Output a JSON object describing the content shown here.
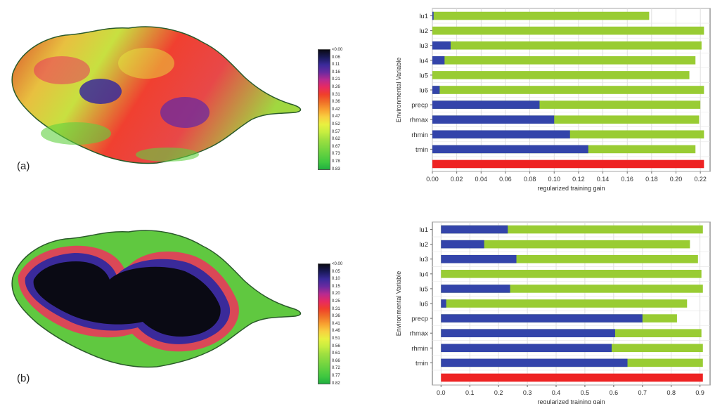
{
  "panels": [
    {
      "label": "(a)",
      "legend_ticks": [
        "<0.00",
        "0.06",
        "0.11",
        "0.16",
        "0.21",
        "0.26",
        "0.31",
        "0.36",
        "0.42",
        "0.47",
        "0.52",
        "0.57",
        "0.62",
        "0.67",
        "0.73",
        "0.78",
        "0.83"
      ]
    },
    {
      "label": "(b)",
      "legend_ticks": [
        "<0.00",
        "0.05",
        "0.10",
        "0.15",
        "0.20",
        "0.25",
        "0.31",
        "0.36",
        "0.41",
        "0.46",
        "0.51",
        "0.56",
        "0.61",
        "0.66",
        "0.72",
        "0.77",
        "0.82"
      ]
    }
  ],
  "legend_colors": [
    "#0a0a14",
    "#1a1a5a",
    "#3a2a9a",
    "#6a2aa0",
    "#b82a90",
    "#e82a60",
    "#f0402a",
    "#f07028",
    "#f8a030",
    "#f8d040",
    "#e8f040",
    "#c8ee40",
    "#a0e040",
    "#80d840",
    "#60d040",
    "#40c840",
    "#20b040"
  ],
  "colors": {
    "without_variable": "#99cc33",
    "with_only_variable": "#3344aa",
    "all_variables": "#ee2222"
  },
  "chart_data": [
    {
      "type": "bar",
      "orientation": "horizontal",
      "ylabel": "Environmental Variable",
      "xlabel": "regularized training gain",
      "categories": [
        "lu1",
        "lu2",
        "lu3",
        "lu4",
        "lu5",
        "lu6",
        "precp",
        "rhmax",
        "rhmin",
        "tmin",
        ""
      ],
      "xlim": [
        0,
        0.228
      ],
      "xticks": [
        0.0,
        0.02,
        0.04,
        0.06,
        0.08,
        0.1,
        0.12,
        0.14,
        0.16,
        0.18,
        0.2,
        0.22
      ],
      "xtick_labels": [
        "0.00",
        "0.02",
        "0.04",
        "0.06",
        "0.08",
        "0.10",
        "0.12",
        "0.14",
        "0.16",
        "0.18",
        "0.20",
        "0.22"
      ],
      "series": [
        {
          "values": [
            0.178,
            0.223,
            0.221,
            0.216,
            0.211,
            0.223,
            0.22,
            0.219,
            0.223,
            0.216,
            null
          ]
        },
        {
          "values": [
            0.001,
            0.0,
            0.015,
            0.01,
            0.0,
            0.006,
            0.088,
            0.1,
            0.113,
            0.128,
            null
          ]
        },
        {
          "values": [
            null,
            null,
            null,
            null,
            null,
            null,
            null,
            null,
            null,
            null,
            0.223
          ]
        }
      ],
      "grid": true
    },
    {
      "type": "bar",
      "orientation": "horizontal",
      "ylabel": "Environmental Variable",
      "xlabel": "regularized training gain",
      "categories": [
        "lu1",
        "lu2",
        "lu3",
        "lu4",
        "lu5",
        "lu6",
        "precp",
        "rhmax",
        "rhmin",
        "tmin",
        ""
      ],
      "xlim": [
        -0.03,
        0.935
      ],
      "xticks": [
        0.0,
        0.1,
        0.2,
        0.3,
        0.4,
        0.5,
        0.6,
        0.7,
        0.8,
        0.9
      ],
      "xtick_labels": [
        "0.0",
        "0.1",
        "0.2",
        "0.3",
        "0.4",
        "0.5",
        "0.6",
        "0.7",
        "0.8",
        "0.9"
      ],
      "series": [
        {
          "values": [
            0.91,
            0.865,
            0.893,
            0.905,
            0.91,
            0.855,
            0.82,
            0.905,
            0.91,
            0.91,
            null
          ]
        },
        {
          "values": [
            0.232,
            0.15,
            0.262,
            0.0,
            0.24,
            0.018,
            0.7,
            0.605,
            0.593,
            0.648,
            null
          ]
        },
        {
          "values": [
            null,
            null,
            null,
            null,
            null,
            null,
            null,
            null,
            null,
            null,
            0.91
          ]
        }
      ],
      "grid": true
    }
  ]
}
